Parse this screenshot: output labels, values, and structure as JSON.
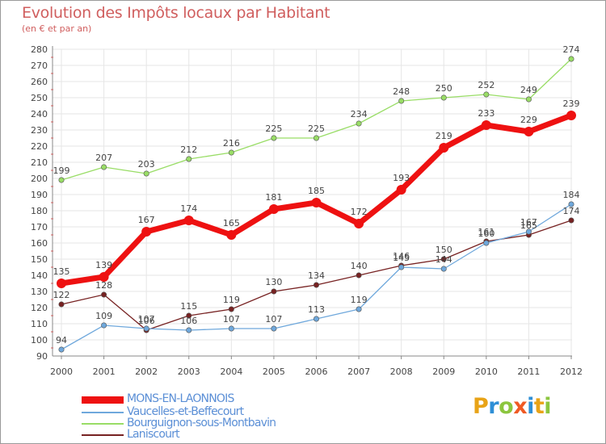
{
  "chart_data": {
    "type": "line",
    "title": "Evolution des Impôts locaux par Habitant",
    "subtitle": "(en € et par an)",
    "xlabel": "",
    "ylabel": "",
    "categories": [
      "2000",
      "2001",
      "2002",
      "2003",
      "2004",
      "2005",
      "2006",
      "2007",
      "2008",
      "2009",
      "2010",
      "2011",
      "2012"
    ],
    "ylim": [
      90,
      280
    ],
    "yticks": [
      90,
      100,
      110,
      120,
      130,
      140,
      150,
      160,
      170,
      180,
      190,
      200,
      210,
      220,
      230,
      240,
      250,
      260,
      270,
      280
    ],
    "grid": true,
    "legend_position": "bottom-left",
    "series": [
      {
        "name": "MONS-EN-LAONNOIS",
        "color": "#ee1111",
        "values": [
          135,
          139,
          167,
          174,
          165,
          181,
          185,
          172,
          193,
          219,
          233,
          229,
          239
        ],
        "labels": [
          "135",
          "139",
          "167",
          "174",
          "165",
          "181",
          "185",
          "172",
          "193",
          "219",
          "233",
          "229",
          "239"
        ]
      },
      {
        "name": "Vaucelles-et-Beffecourt",
        "color": "#6fa8dc",
        "values": [
          94,
          109,
          107,
          106,
          107,
          107,
          113,
          119,
          145,
          144,
          160,
          167,
          184
        ],
        "labels": [
          "94",
          "109",
          "107",
          "106",
          "107",
          "107",
          "113",
          "119",
          "145",
          "144",
          "160",
          "167",
          "184"
        ]
      },
      {
        "name": "Bourguignon-sous-Montbavin",
        "color": "#99dd66",
        "values": [
          199,
          207,
          203,
          212,
          216,
          225,
          225,
          234,
          248,
          250,
          252,
          249,
          274
        ],
        "labels": [
          "199",
          "207",
          "203",
          "212",
          "216",
          "225",
          "225",
          "234",
          "248",
          "250",
          "252",
          "249",
          "274"
        ]
      },
      {
        "name": "Laniscourt",
        "color": "#772222",
        "values": [
          122,
          128,
          106,
          115,
          119,
          130,
          134,
          140,
          146,
          150,
          161,
          165,
          174
        ],
        "labels": [
          "122",
          "128",
          "106",
          "115",
          "119",
          "130",
          "134",
          "140",
          "146",
          "150",
          "161",
          "165",
          "174"
        ]
      }
    ]
  },
  "logo": {
    "letters": [
      "P",
      "r",
      "o",
      "x",
      "i",
      "t",
      "i"
    ]
  }
}
